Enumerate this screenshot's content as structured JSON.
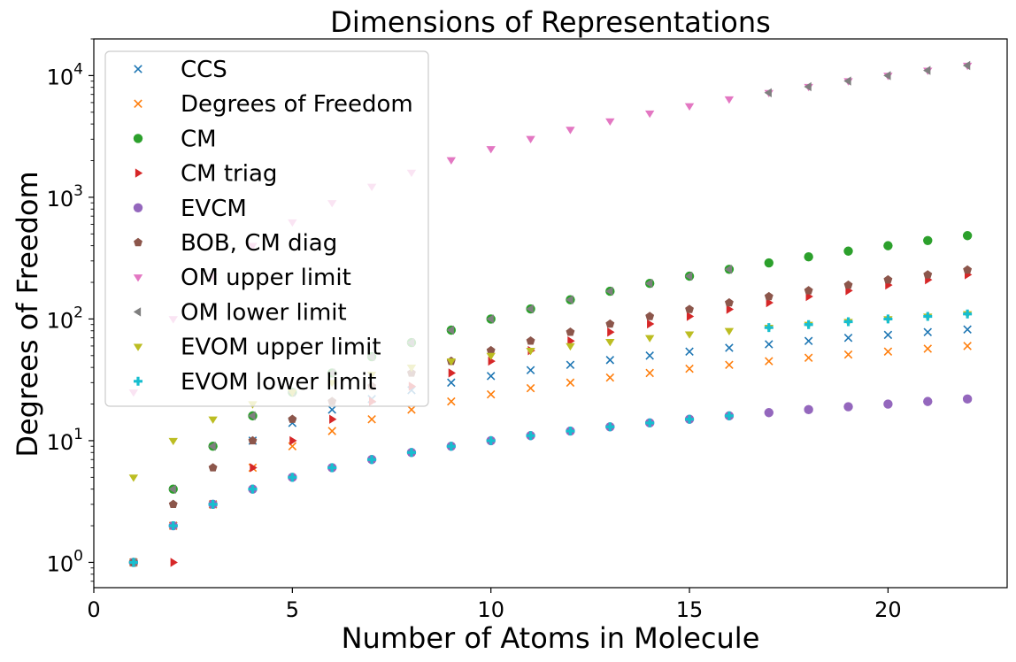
{
  "chart_data": {
    "type": "scatter",
    "title": "Dimensions of Representations",
    "xlabel": "Number of Atoms in Molecule",
    "ylabel": "Degrees of Freedom",
    "xscale": "linear",
    "yscale": "log",
    "xlim": [
      0,
      23
    ],
    "ylim": [
      0.62,
      20000
    ],
    "xticks": [
      0,
      5,
      10,
      15,
      20
    ],
    "xtick_labels": [
      "0",
      "5",
      "10",
      "15",
      "20"
    ],
    "yticks": [
      1,
      10,
      100,
      1000,
      10000
    ],
    "ytick_labels": [
      {
        "base": "10",
        "exp": "0"
      },
      {
        "base": "10",
        "exp": "1"
      },
      {
        "base": "10",
        "exp": "2"
      },
      {
        "base": "10",
        "exp": "3"
      },
      {
        "base": "10",
        "exp": "4"
      }
    ],
    "grid": false,
    "legend_position": "upper-left",
    "series": [
      {
        "name": "CCS",
        "color": "#1f77b4",
        "marker": "x",
        "x": [
          1,
          2,
          3,
          4,
          5,
          6,
          7,
          8,
          9,
          10,
          11,
          12,
          13,
          14,
          15,
          16,
          17,
          18,
          19,
          20,
          21,
          22
        ],
        "y": [
          1,
          2,
          3,
          10,
          14,
          18,
          22,
          26,
          30,
          34,
          38,
          42,
          46,
          50,
          54,
          58,
          62,
          66,
          70,
          74,
          78,
          82
        ]
      },
      {
        "name": "Degrees of Freedom",
        "color": "#ff7f0e",
        "marker": "x",
        "x": [
          1,
          2,
          3,
          4,
          5,
          6,
          7,
          8,
          9,
          10,
          11,
          12,
          13,
          14,
          15,
          16,
          17,
          18,
          19,
          20,
          21,
          22
        ],
        "y": [
          1,
          2,
          3,
          6,
          9,
          12,
          15,
          18,
          21,
          24,
          27,
          30,
          33,
          36,
          39,
          42,
          45,
          48,
          51,
          54,
          57,
          60
        ]
      },
      {
        "name": "CM",
        "color": "#2ca02c",
        "marker": "circle",
        "x": [
          1,
          2,
          3,
          4,
          5,
          6,
          7,
          8,
          9,
          10,
          11,
          12,
          13,
          14,
          15,
          16,
          17,
          18,
          19,
          20,
          21,
          22
        ],
        "y": [
          1,
          4,
          9,
          16,
          25,
          36,
          49,
          64,
          81,
          100,
          121,
          144,
          169,
          196,
          225,
          256,
          289,
          324,
          361,
          400,
          441,
          484
        ]
      },
      {
        "name": "CM triag",
        "color": "#d62728",
        "marker": "triangle-right",
        "x": [
          1,
          2,
          3,
          4,
          5,
          6,
          7,
          8,
          9,
          10,
          11,
          12,
          13,
          14,
          15,
          16,
          17,
          18,
          19,
          20,
          21,
          22
        ],
        "y": [
          0,
          1,
          3,
          6,
          10,
          15,
          21,
          28,
          36,
          45,
          55,
          66,
          78,
          91,
          105,
          120,
          136,
          153,
          171,
          190,
          210,
          231
        ]
      },
      {
        "name": "EVCM",
        "color": "#9467bd",
        "marker": "circle",
        "x": [
          1,
          2,
          3,
          4,
          5,
          6,
          7,
          8,
          9,
          10,
          11,
          12,
          13,
          14,
          15,
          16,
          17,
          18,
          19,
          20,
          21,
          22
        ],
        "y": [
          1,
          2,
          3,
          4,
          5,
          6,
          7,
          8,
          9,
          10,
          11,
          12,
          13,
          14,
          15,
          16,
          17,
          18,
          19,
          20,
          21,
          22
        ]
      },
      {
        "name": "BOB, CM diag",
        "color": "#8c564b",
        "marker": "pentagon",
        "x": [
          1,
          2,
          3,
          4,
          5,
          6,
          7,
          8,
          9,
          10,
          11,
          12,
          13,
          14,
          15,
          16,
          17,
          18,
          19,
          20,
          21,
          22
        ],
        "y": [
          1,
          3,
          6,
          10,
          15,
          21,
          28,
          36,
          45,
          55,
          66,
          78,
          91,
          105,
          120,
          136,
          153,
          171,
          190,
          210,
          231,
          253
        ]
      },
      {
        "name": "OM upper limit",
        "color": "#e377c2",
        "marker": "triangle-down",
        "x": [
          1,
          2,
          3,
          4,
          5,
          6,
          7,
          8,
          9,
          10,
          11,
          12,
          13,
          14,
          15,
          16,
          17,
          18,
          19,
          20,
          21,
          22
        ],
        "y": [
          25,
          100,
          225,
          400,
          625,
          900,
          1225,
          1600,
          2025,
          2500,
          3025,
          3600,
          4225,
          4900,
          5625,
          6400,
          7225,
          8100,
          9025,
          10000,
          11025,
          12100
        ]
      },
      {
        "name": "OM lower limit",
        "color": "#7f7f7f",
        "marker": "triangle-left",
        "x": [
          1,
          2,
          3,
          4,
          5,
          6,
          7,
          8,
          9,
          10,
          11,
          12,
          13,
          14,
          15,
          16,
          17,
          18,
          19,
          20,
          21,
          22
        ],
        "y": [
          1,
          4,
          9,
          16,
          25,
          36,
          49,
          64,
          81,
          100,
          121,
          144,
          169,
          196,
          225,
          256,
          7225,
          8100,
          9025,
          10000,
          11025,
          12100
        ]
      },
      {
        "name": "EVOM upper limit",
        "color": "#bcbd22",
        "marker": "triangle-down",
        "x": [
          1,
          2,
          3,
          4,
          5,
          6,
          7,
          8,
          9,
          10,
          11,
          12,
          13,
          14,
          15,
          16,
          17,
          18,
          19,
          20,
          21,
          22
        ],
        "y": [
          5,
          10,
          15,
          20,
          25,
          30,
          35,
          40,
          45,
          50,
          55,
          60,
          65,
          70,
          75,
          80,
          85,
          90,
          95,
          100,
          105,
          110
        ]
      },
      {
        "name": "EVOM lower limit",
        "color": "#17becf",
        "marker": "plus",
        "x": [
          1,
          2,
          3,
          4,
          5,
          6,
          7,
          8,
          9,
          10,
          11,
          12,
          13,
          14,
          15,
          16,
          17,
          18,
          19,
          20,
          21,
          22
        ],
        "y": [
          1,
          2,
          3,
          4,
          5,
          6,
          7,
          8,
          9,
          10,
          11,
          12,
          13,
          14,
          15,
          16,
          85,
          90,
          95,
          100,
          105,
          110
        ]
      }
    ]
  }
}
